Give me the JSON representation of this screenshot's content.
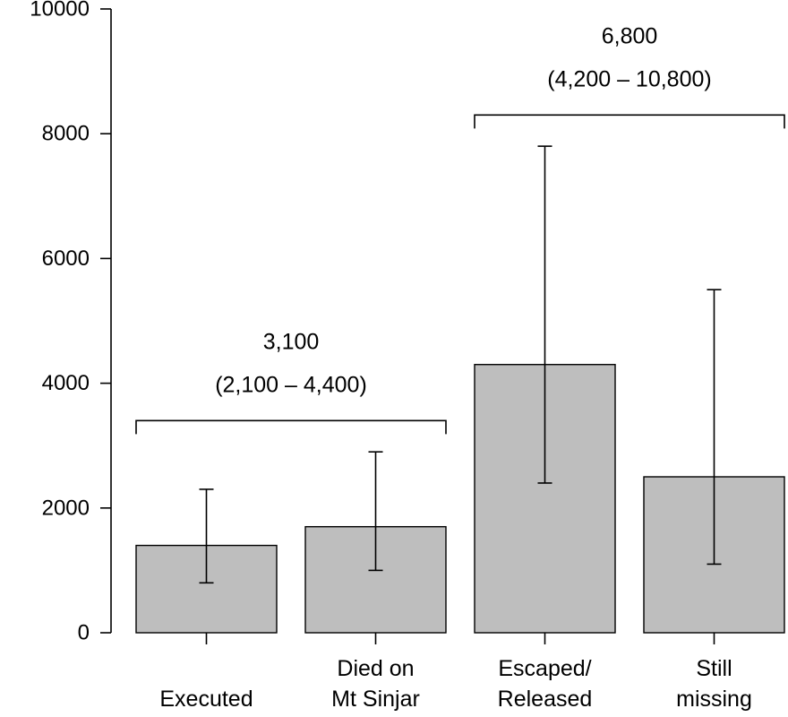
{
  "chart_data": {
    "type": "bar",
    "categories": [
      [
        "Executed"
      ],
      [
        "Died on",
        "Mt Sinjar"
      ],
      [
        "Escaped/",
        "Released"
      ],
      [
        "Still",
        "missing"
      ]
    ],
    "values": [
      1400,
      1700,
      4300,
      2500
    ],
    "error_low": [
      800,
      1000,
      2400,
      1100
    ],
    "error_high": [
      2300,
      2900,
      7800,
      5500
    ],
    "ylim": [
      0,
      10000
    ],
    "yticks": [
      0,
      2000,
      4000,
      6000,
      8000,
      10000
    ],
    "ytick_labels": [
      "0",
      "2000",
      "4000",
      "6000",
      "8000",
      "10000"
    ],
    "bar_color": "#bebebe",
    "grid": false,
    "annotations": [
      {
        "start": 0,
        "end": 1,
        "bracket_y": 3400,
        "lines": [
          "3,100",
          "(2,100 – 4,400)"
        ]
      },
      {
        "start": 2,
        "end": 3,
        "bracket_y": 8300,
        "lines": [
          "6,800",
          "(4,200 – 10,800)"
        ]
      }
    ]
  }
}
